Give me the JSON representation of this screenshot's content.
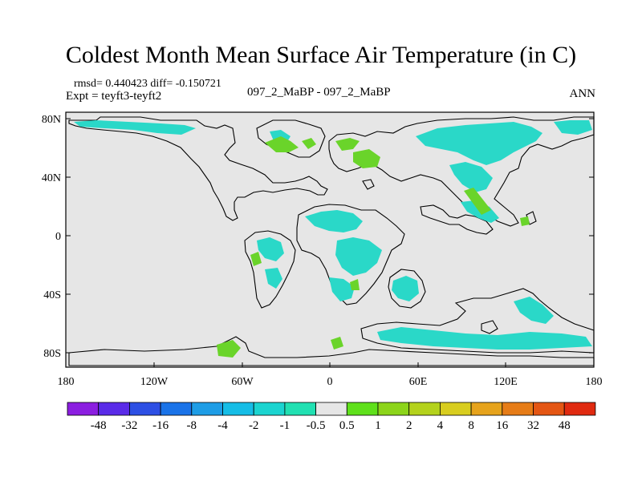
{
  "title": "Coldest Month Mean Surface Air Temperature (in C)",
  "stats": "rmsd= 0.440423 diff= -0.150721",
  "experiment": "Expt = teyft3-teyft2",
  "center_label": "097_2_MaBP - 097_2_MaBP",
  "season": "ANN",
  "x_ticks": [
    "180",
    "120W",
    "60W",
    "0",
    "60E",
    "120E",
    "180"
  ],
  "y_ticks": [
    "80N",
    "40N",
    "0",
    "40S",
    "80S"
  ],
  "colorbar": {
    "colors": [
      "#8b1ee0",
      "#5a2be8",
      "#2d4fe4",
      "#1a73e8",
      "#1e9de6",
      "#16bde6",
      "#1bd4d0",
      "#21e0b2",
      "#e6e6e6",
      "#5fe01b",
      "#8cd41a",
      "#b4d21c",
      "#d8cd1f",
      "#e6a31c",
      "#e67c17",
      "#e45614",
      "#e02a10"
    ],
    "labels": [
      "-48",
      "-32",
      "-16",
      "-8",
      "-4",
      "-2",
      "-1",
      "-0.5",
      "0.5",
      "1",
      "2",
      "4",
      "8",
      "16",
      "32",
      "48"
    ]
  },
  "map_colors": {
    "ocean": "#e6e6e6",
    "cool": "#2ad8c8",
    "warm": "#6ad42a",
    "outline": "#000000"
  }
}
